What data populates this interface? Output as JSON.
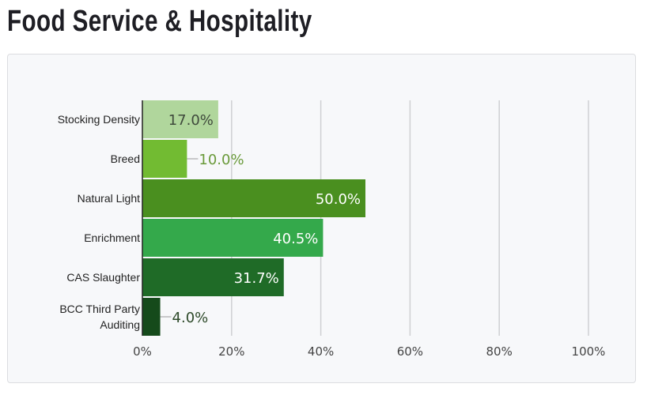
{
  "page_title": "Food Service & Hospitality",
  "chart_data": {
    "type": "bar",
    "orientation": "horizontal",
    "title": "",
    "categories": [
      [
        "Stocking Density"
      ],
      [
        "Breed"
      ],
      [
        "Natural Light"
      ],
      [
        "Enrichment"
      ],
      [
        "CAS Slaughter"
      ],
      [
        "BCC Third Party",
        "Auditing"
      ]
    ],
    "values": [
      17.0,
      10.0,
      50.0,
      40.5,
      31.7,
      4.0
    ],
    "value_labels": [
      "17.0%",
      "10.0%",
      "50.0%",
      "40.5%",
      "31.7%",
      "4.0%"
    ],
    "colors": [
      "#b0d69c",
      "#72bb32",
      "#4a8f1f",
      "#34a94b",
      "#1f6b27",
      "#154a1b"
    ],
    "label_colors": [
      "#3f4a3c",
      "#6a9a3a",
      "#ffffff",
      "#ffffff",
      "#ffffff",
      "#2e4a2a"
    ],
    "xlim": [
      0,
      100
    ],
    "x_ticks": [
      "0%",
      "20%",
      "40%",
      "60%",
      "80%",
      "100%"
    ],
    "x_tick_values": [
      0,
      20,
      40,
      60,
      80,
      100
    ],
    "grid": true,
    "xlabel": "",
    "ylabel": ""
  }
}
